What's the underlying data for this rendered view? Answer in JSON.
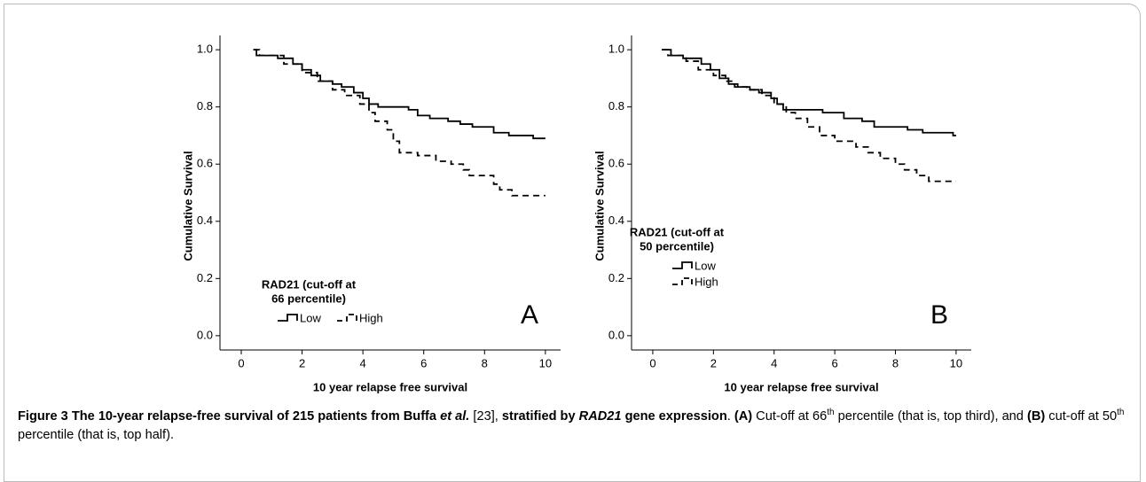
{
  "chart_data": [
    {
      "type": "step",
      "panel_label": "A",
      "x_label": "10 year relapse free survival",
      "y_label": "Cumulative Survival",
      "xlim": [
        -0.7,
        10.5
      ],
      "xticks": [
        0,
        2,
        4,
        6,
        8,
        10
      ],
      "ylim": [
        -0.05,
        1.05
      ],
      "yticks": [
        {
          "value": 0,
          "label": "0.0"
        },
        0.2,
        0.4,
        0.6,
        0.8,
        {
          "value": 1,
          "label": "1.0"
        }
      ],
      "legend_title": [
        "RAD21 (cut-off at",
        "66 percentile)"
      ],
      "series": [
        {
          "name": "Low",
          "color": "#000000",
          "dash": false,
          "x": [
            0.4,
            0.5,
            1.2,
            1.7,
            2.0,
            2.3,
            2.6,
            3.0,
            3.3,
            3.7,
            4.0,
            4.2,
            4.5,
            5.5,
            5.8,
            6.2,
            6.8,
            7.2,
            7.6,
            8.3,
            8.8,
            9.6,
            10
          ],
          "values": [
            1.0,
            0.98,
            0.97,
            0.95,
            0.93,
            0.91,
            0.89,
            0.88,
            0.87,
            0.85,
            0.83,
            0.81,
            0.8,
            0.79,
            0.77,
            0.76,
            0.75,
            0.74,
            0.73,
            0.71,
            0.7,
            0.69,
            0.69
          ]
        },
        {
          "name": "High",
          "color": "#000000",
          "dash": true,
          "x": [
            0.4,
            0.6,
            1.4,
            2.0,
            2.5,
            3.0,
            3.4,
            3.9,
            4.2,
            4.4,
            4.8,
            5.0,
            5.2,
            5.8,
            6.4,
            6.9,
            7.3,
            7.5,
            8.3,
            8.5,
            8.9,
            10
          ],
          "values": [
            1.0,
            0.98,
            0.95,
            0.92,
            0.89,
            0.86,
            0.84,
            0.81,
            0.78,
            0.75,
            0.72,
            0.68,
            0.64,
            0.63,
            0.61,
            0.6,
            0.58,
            0.56,
            0.53,
            0.51,
            0.49,
            0.49
          ]
        }
      ]
    },
    {
      "type": "step",
      "panel_label": "B",
      "x_label": "10 year relapse free survival",
      "y_label": "Cumulative Survival",
      "xlim": [
        -0.7,
        10.5
      ],
      "xticks": [
        0,
        2,
        4,
        6,
        8,
        10
      ],
      "ylim": [
        -0.05,
        1.05
      ],
      "yticks": [
        {
          "value": 0,
          "label": "0.0"
        },
        0.2,
        0.4,
        0.6,
        0.8,
        {
          "value": 1,
          "label": "1.0"
        }
      ],
      "legend_title": [
        "RAD21 (cut-off at",
        "50 percentile)"
      ],
      "series": [
        {
          "name": "Low",
          "color": "#000000",
          "dash": false,
          "x": [
            0.3,
            0.6,
            1.0,
            1.6,
            1.9,
            2.2,
            2.5,
            2.8,
            3.2,
            3.5,
            3.9,
            4.1,
            4.3,
            5.6,
            6.3,
            6.9,
            7.3,
            8.4,
            8.9,
            9.9,
            10
          ],
          "values": [
            1.0,
            0.98,
            0.97,
            0.95,
            0.93,
            0.9,
            0.88,
            0.87,
            0.86,
            0.85,
            0.83,
            0.81,
            0.79,
            0.78,
            0.76,
            0.75,
            0.73,
            0.72,
            0.71,
            0.7,
            0.7
          ]
        },
        {
          "name": "High",
          "color": "#000000",
          "dash": true,
          "x": [
            0.3,
            0.5,
            1.1,
            1.5,
            2.0,
            2.4,
            2.7,
            3.1,
            3.6,
            4.0,
            4.4,
            4.7,
            5.1,
            5.5,
            6.0,
            6.7,
            7.1,
            7.5,
            8.0,
            8.3,
            8.7,
            9.1,
            10
          ],
          "values": [
            1.0,
            0.98,
            0.96,
            0.93,
            0.91,
            0.89,
            0.87,
            0.86,
            0.84,
            0.81,
            0.78,
            0.76,
            0.73,
            0.7,
            0.68,
            0.66,
            0.64,
            0.62,
            0.6,
            0.58,
            0.56,
            0.54,
            0.54
          ]
        }
      ]
    }
  ],
  "caption": [
    "Figure 3 The 10-year relapse-free survival of 215 patients from Buffa ",
    "et al.",
    " [23], ",
    "stratified by ",
    "RAD21",
    " gene expression",
    ". ",
    "(A)",
    " Cut-off at 66",
    "th",
    " percentile (that is, top third), and ",
    "(B)",
    " cut-off at 50",
    "th",
    " percentile (that is, top half)."
  ]
}
